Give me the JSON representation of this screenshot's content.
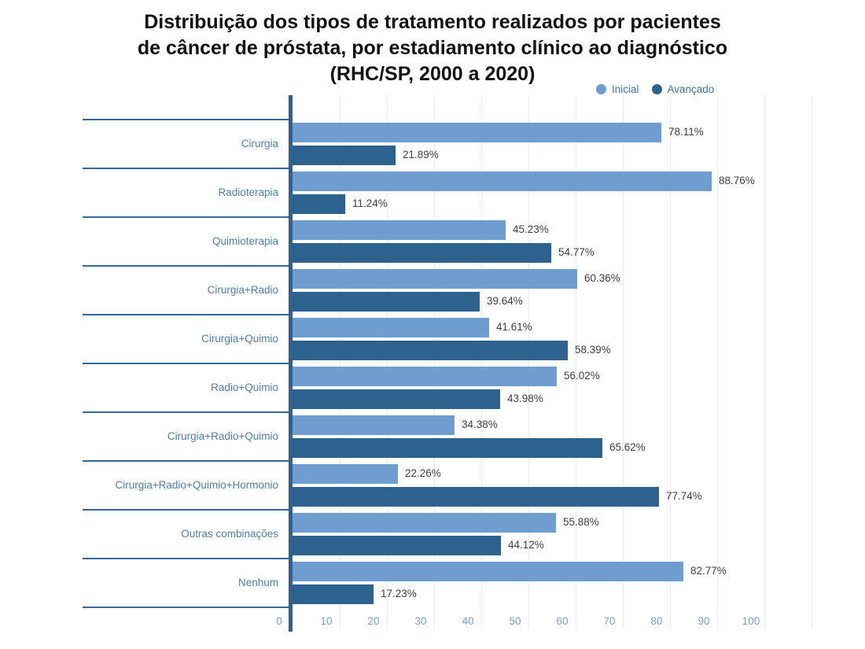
{
  "title": {
    "line1": "Distribuição dos tipos de tratamento realizados por pacientes",
    "line2": "de câncer de próstata, por estadiamento clínico ao diagnóstico",
    "line3": "(RHC/SP, 2000 a 2020)"
  },
  "legend": [
    {
      "label": "Inicial",
      "color": "#6f9dd0"
    },
    {
      "label": "Avançado",
      "color": "#2d628f"
    }
  ],
  "chart_data": {
    "type": "bar",
    "orientation": "horizontal",
    "title": "Distribuição dos tipos de tratamento realizados por pacientes de câncer de próstata, por estadiamento clínico ao diagnóstico (RHC/SP, 2000 a 2020)",
    "categories": [
      "Cirurgia",
      "Radioterapia",
      "Quimioterapia",
      "Cirurgia+Radio",
      "Cirurgia+Quimio",
      "Radio+Quimio",
      "Cirurgia+Radio+Quimio",
      "Cirurgia+Radio+Quimio+Hormonio",
      "Outras combinações",
      "Nenhum"
    ],
    "series": [
      {
        "name": "Inicial",
        "color": "#6f9dd0",
        "values": [
          78.11,
          88.76,
          45.23,
          60.36,
          41.61,
          56.02,
          34.38,
          22.26,
          55.88,
          82.77
        ],
        "labels": [
          "78.11%",
          "88.76%",
          "45.23%",
          "60.36%",
          "41.61%",
          "56.02%",
          "34.38%",
          "22.26%",
          "55.88%",
          "82.77%"
        ]
      },
      {
        "name": "Avançado",
        "color": "#2d628f",
        "values": [
          21.89,
          11.24,
          54.77,
          39.64,
          58.39,
          43.98,
          65.62,
          77.74,
          44.12,
          17.23
        ],
        "labels": [
          "21.89%",
          "11.24%",
          "54.77%",
          "39.64%",
          "58.39%",
          "43.98%",
          "65.62%",
          "77.74%",
          "44.12%",
          "17.23%"
        ]
      }
    ],
    "x_ticks": [
      "0",
      "10",
      "20",
      "30",
      "40",
      "50",
      "60",
      "70",
      "80",
      "90",
      "100"
    ],
    "xlim": [
      0,
      110
    ],
    "xlabel": "",
    "ylabel": "",
    "grid": "vertical-only",
    "legend_position": "top-right",
    "value_labels": "outside-end"
  },
  "style_colors": {
    "axis": "#2e6290",
    "separator": "#336a9b",
    "gridline": "#ebebeb",
    "category_label": "#4d7fae",
    "tick_label": "#79a1c6",
    "value_label": "#3e3e3e",
    "background": "#ffffff"
  }
}
